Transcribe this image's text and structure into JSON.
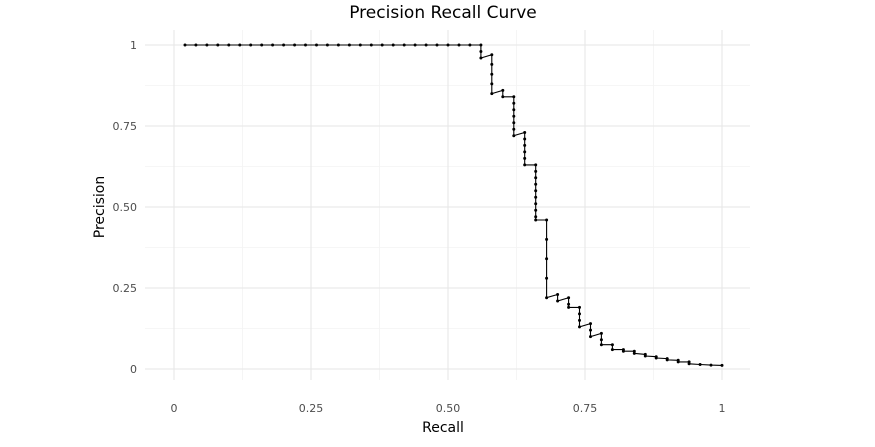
{
  "chart_data": {
    "type": "line",
    "title": "Precision Recall Curve",
    "xlabel": "Recall",
    "ylabel": "Precision",
    "xlim": [
      0,
      1
    ],
    "ylim": [
      0,
      1
    ],
    "x_ticks": [
      0,
      0.25,
      0.5,
      0.75,
      1
    ],
    "x_tick_labels": [
      "0",
      "0.25",
      "0.50",
      "0.75",
      "1"
    ],
    "y_ticks": [
      0,
      0.25,
      0.5,
      0.75,
      1
    ],
    "y_tick_labels": [
      "0",
      "0.25",
      "0.50",
      "0.75",
      "1"
    ],
    "grid": true,
    "legend": "none",
    "series": [
      {
        "points": [
          [
            0.02,
            1.0
          ],
          [
            0.04,
            1.0
          ],
          [
            0.06,
            1.0
          ],
          [
            0.08,
            1.0
          ],
          [
            0.1,
            1.0
          ],
          [
            0.12,
            1.0
          ],
          [
            0.14,
            1.0
          ],
          [
            0.16,
            1.0
          ],
          [
            0.18,
            1.0
          ],
          [
            0.2,
            1.0
          ],
          [
            0.22,
            1.0
          ],
          [
            0.24,
            1.0
          ],
          [
            0.26,
            1.0
          ],
          [
            0.28,
            1.0
          ],
          [
            0.3,
            1.0
          ],
          [
            0.32,
            1.0
          ],
          [
            0.34,
            1.0
          ],
          [
            0.36,
            1.0
          ],
          [
            0.38,
            1.0
          ],
          [
            0.4,
            1.0
          ],
          [
            0.42,
            1.0
          ],
          [
            0.44,
            1.0
          ],
          [
            0.46,
            1.0
          ],
          [
            0.48,
            1.0
          ],
          [
            0.5,
            1.0
          ],
          [
            0.52,
            1.0
          ],
          [
            0.54,
            1.0
          ],
          [
            0.56,
            1.0
          ],
          [
            0.56,
            0.98
          ],
          [
            0.56,
            0.96
          ],
          [
            0.58,
            0.97
          ],
          [
            0.58,
            0.94
          ],
          [
            0.58,
            0.91
          ],
          [
            0.58,
            0.88
          ],
          [
            0.58,
            0.85
          ],
          [
            0.6,
            0.86
          ],
          [
            0.6,
            0.84
          ],
          [
            0.62,
            0.84
          ],
          [
            0.62,
            0.82
          ],
          [
            0.62,
            0.8
          ],
          [
            0.62,
            0.78
          ],
          [
            0.62,
            0.76
          ],
          [
            0.62,
            0.74
          ],
          [
            0.62,
            0.72
          ],
          [
            0.64,
            0.73
          ],
          [
            0.64,
            0.71
          ],
          [
            0.64,
            0.69
          ],
          [
            0.64,
            0.67
          ],
          [
            0.64,
            0.65
          ],
          [
            0.64,
            0.63
          ],
          [
            0.66,
            0.63
          ],
          [
            0.66,
            0.61
          ],
          [
            0.66,
            0.59
          ],
          [
            0.66,
            0.57
          ],
          [
            0.66,
            0.55
          ],
          [
            0.66,
            0.53
          ],
          [
            0.66,
            0.51
          ],
          [
            0.66,
            0.49
          ],
          [
            0.66,
            0.47
          ],
          [
            0.66,
            0.46
          ],
          [
            0.68,
            0.46
          ],
          [
            0.68,
            0.4
          ],
          [
            0.68,
            0.34
          ],
          [
            0.68,
            0.28
          ],
          [
            0.68,
            0.22
          ],
          [
            0.7,
            0.23
          ],
          [
            0.7,
            0.21
          ],
          [
            0.72,
            0.22
          ],
          [
            0.72,
            0.2
          ],
          [
            0.72,
            0.19
          ],
          [
            0.74,
            0.19
          ],
          [
            0.74,
            0.17
          ],
          [
            0.74,
            0.15
          ],
          [
            0.74,
            0.13
          ],
          [
            0.76,
            0.14
          ],
          [
            0.76,
            0.12
          ],
          [
            0.76,
            0.1
          ],
          [
            0.78,
            0.11
          ],
          [
            0.78,
            0.09
          ],
          [
            0.78,
            0.075
          ],
          [
            0.8,
            0.075
          ],
          [
            0.8,
            0.06
          ],
          [
            0.82,
            0.06
          ],
          [
            0.82,
            0.055
          ],
          [
            0.84,
            0.055
          ],
          [
            0.84,
            0.048
          ],
          [
            0.86,
            0.045
          ],
          [
            0.86,
            0.04
          ],
          [
            0.88,
            0.038
          ],
          [
            0.88,
            0.034
          ],
          [
            0.9,
            0.032
          ],
          [
            0.9,
            0.028
          ],
          [
            0.92,
            0.027
          ],
          [
            0.92,
            0.022
          ],
          [
            0.94,
            0.022
          ],
          [
            0.94,
            0.016
          ],
          [
            0.96,
            0.014
          ],
          [
            0.98,
            0.012
          ],
          [
            1.0,
            0.011
          ]
        ]
      }
    ]
  }
}
